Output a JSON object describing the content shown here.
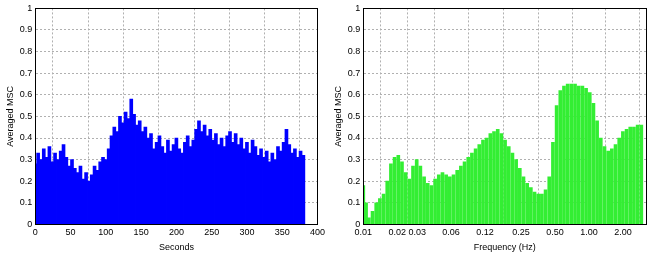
{
  "chart_data": [
    {
      "type": "bar",
      "x_label": "Seconds",
      "y_label": "Averaged MSC",
      "color": "#0000ff",
      "grid": true,
      "xlim": [
        0,
        400
      ],
      "xticks": [
        0,
        50,
        100,
        150,
        200,
        250,
        300,
        350,
        400
      ],
      "ylim": [
        0,
        1
      ],
      "yticks": [
        0,
        0.1,
        0.2,
        0.3,
        0.4,
        0.5,
        0.6,
        0.7,
        0.8,
        0.9,
        1
      ],
      "x": [
        0,
        4,
        8,
        12,
        16,
        20,
        24,
        28,
        32,
        36,
        40,
        44,
        48,
        52,
        56,
        60,
        64,
        68,
        72,
        76,
        80,
        84,
        88,
        92,
        96,
        100,
        104,
        108,
        112,
        116,
        120,
        124,
        128,
        132,
        136,
        140,
        144,
        148,
        152,
        156,
        160,
        164,
        168,
        172,
        176,
        180,
        184,
        188,
        192,
        196,
        200,
        204,
        208,
        212,
        216,
        220,
        224,
        228,
        232,
        236,
        240,
        244,
        248,
        252,
        256,
        260,
        264,
        268,
        272,
        276,
        280,
        284,
        288,
        292,
        296,
        300,
        304,
        308,
        312,
        316,
        320,
        324,
        328,
        332,
        336,
        340,
        344,
        348,
        352,
        356,
        360,
        364,
        368,
        372,
        376,
        380
      ],
      "values": [
        0.28,
        0.33,
        0.3,
        0.35,
        0.31,
        0.36,
        0.29,
        0.33,
        0.3,
        0.34,
        0.37,
        0.31,
        0.27,
        0.3,
        0.26,
        0.24,
        0.27,
        0.21,
        0.24,
        0.2,
        0.23,
        0.27,
        0.25,
        0.29,
        0.31,
        0.3,
        0.35,
        0.41,
        0.45,
        0.43,
        0.5,
        0.47,
        0.52,
        0.49,
        0.58,
        0.51,
        0.46,
        0.48,
        0.43,
        0.45,
        0.4,
        0.42,
        0.35,
        0.38,
        0.41,
        0.36,
        0.33,
        0.39,
        0.34,
        0.37,
        0.4,
        0.35,
        0.33,
        0.38,
        0.41,
        0.36,
        0.39,
        0.44,
        0.48,
        0.43,
        0.46,
        0.41,
        0.44,
        0.39,
        0.42,
        0.37,
        0.4,
        0.36,
        0.41,
        0.43,
        0.38,
        0.42,
        0.37,
        0.4,
        0.35,
        0.38,
        0.33,
        0.39,
        0.36,
        0.32,
        0.35,
        0.31,
        0.34,
        0.29,
        0.33,
        0.3,
        0.36,
        0.34,
        0.38,
        0.44,
        0.37,
        0.33,
        0.35,
        0.31,
        0.34,
        0.32
      ]
    },
    {
      "type": "bar",
      "x_label": "Frequency (Hz)",
      "y_label": "Averaged MSC",
      "color": "#33ee33",
      "grid": true,
      "log": "x",
      "xlim": [
        0.01,
        3.2
      ],
      "xticks": [
        0.01,
        0.02,
        0.03,
        0.06,
        0.12,
        0.25,
        {
          "value": 0.5,
          "label": "0.50"
        },
        {
          "value": 1,
          "label": "1.00"
        },
        {
          "value": 2,
          "label": "2.00"
        }
      ],
      "ylim": [
        0,
        1
      ],
      "yticks": [
        0,
        0.1,
        0.2,
        0.3,
        0.4,
        0.5,
        0.6,
        0.7,
        0.8,
        0.9,
        1
      ],
      "x": [
        0.01,
        0.01058,
        0.0112,
        0.01207,
        0.01301,
        0.01402,
        0.01512,
        0.0163,
        0.01757,
        0.01894,
        0.02042,
        0.02201,
        0.02373,
        0.02558,
        0.02757,
        0.02973,
        0.03204,
        0.03455,
        0.03724,
        0.04014,
        0.04328,
        0.04665,
        0.0503,
        0.05422,
        0.05845,
        0.06302,
        0.06793,
        0.07324,
        0.07895,
        0.0851,
        0.09175,
        0.0989,
        0.1066,
        0.115,
        0.1239,
        0.1336,
        0.144,
        0.1553,
        0.1674,
        0.1804,
        0.1945,
        0.2097,
        0.2261,
        0.2437,
        0.2627,
        0.2832,
        0.3053,
        0.3291,
        0.3548,
        0.3824,
        0.4123,
        0.4445,
        0.4792,
        0.5166,
        0.5568,
        0.6003,
        0.6471,
        0.6976,
        0.7521,
        0.8107,
        0.874,
        0.9422,
        1.016,
        1.095,
        1.18,
        1.272,
        1.372,
        1.479,
        1.594,
        1.718,
        1.853,
        1.997,
        2.153,
        2.321,
        2.502,
        2.698,
        2.908
      ],
      "values": [
        0.18,
        0.1,
        0.03,
        0.06,
        0.1,
        0.12,
        0.14,
        0.2,
        0.28,
        0.31,
        0.32,
        0.29,
        0.24,
        0.21,
        0.27,
        0.3,
        0.27,
        0.22,
        0.19,
        0.18,
        0.21,
        0.23,
        0.24,
        0.23,
        0.22,
        0.23,
        0.25,
        0.27,
        0.29,
        0.31,
        0.33,
        0.35,
        0.37,
        0.39,
        0.4,
        0.42,
        0.43,
        0.44,
        0.42,
        0.39,
        0.36,
        0.33,
        0.3,
        0.26,
        0.22,
        0.19,
        0.17,
        0.15,
        0.14,
        0.14,
        0.16,
        0.22,
        0.38,
        0.55,
        0.62,
        0.64,
        0.65,
        0.65,
        0.65,
        0.64,
        0.64,
        0.63,
        0.61,
        0.56,
        0.48,
        0.4,
        0.36,
        0.34,
        0.35,
        0.37,
        0.4,
        0.43,
        0.44,
        0.45,
        0.45,
        0.46,
        0.46
      ]
    }
  ]
}
